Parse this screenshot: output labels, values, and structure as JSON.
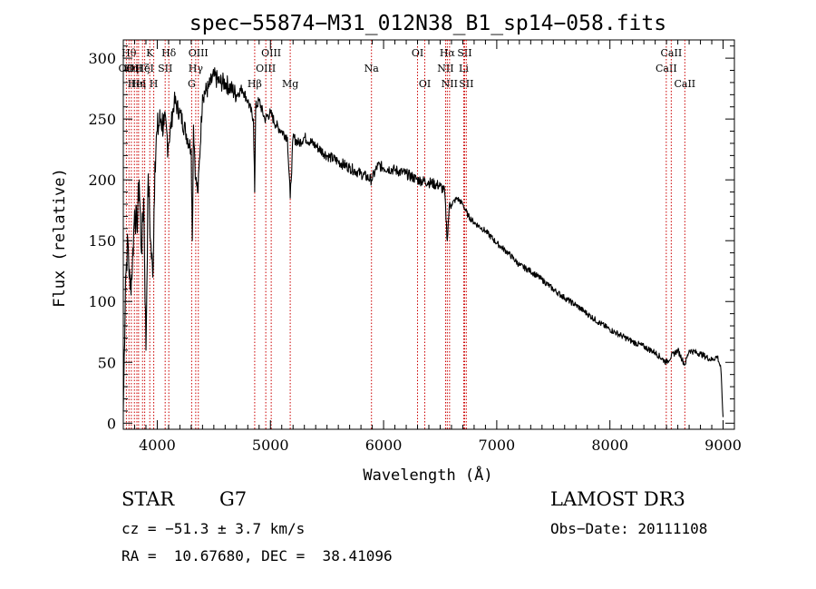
{
  "chart_data": {
    "type": "line",
    "title": "spec−55874−M31_012N38_B1_sp14−058.fits",
    "xlabel": "Wavelength (Å)",
    "ylabel": "Flux (relative)",
    "xlim": [
      3700,
      9100
    ],
    "ylim": [
      -5,
      315
    ],
    "x_ticks": [
      4000,
      5000,
      6000,
      7000,
      8000,
      9000
    ],
    "y_ticks": [
      0,
      50,
      100,
      150,
      200,
      250,
      300
    ],
    "series": [
      {
        "name": "spectrum",
        "x": [
          3700,
          3720,
          3740,
          3760,
          3780,
          3800,
          3820,
          3840,
          3860,
          3880,
          3900,
          3920,
          3940,
          3960,
          3980,
          4000,
          4030,
          4060,
          4100,
          4150,
          4200,
          4250,
          4300,
          4310,
          4320,
          4340,
          4360,
          4400,
          4450,
          4500,
          4550,
          4600,
          4650,
          4700,
          4750,
          4800,
          4850,
          4861,
          4870,
          4900,
          4950,
          5000,
          5050,
          5100,
          5150,
          5175,
          5200,
          5250,
          5300,
          5400,
          5500,
          5600,
          5700,
          5800,
          5893,
          5950,
          6000,
          6100,
          6200,
          6300,
          6400,
          6500,
          6540,
          6563,
          6580,
          6600,
          6650,
          6700,
          6750,
          6800,
          6900,
          7000,
          7100,
          7200,
          7300,
          7400,
          7500,
          7600,
          7700,
          7800,
          7900,
          8000,
          8100,
          8200,
          8300,
          8400,
          8498,
          8542,
          8600,
          8662,
          8700,
          8800,
          8900,
          8950,
          8980,
          9000
        ],
        "values": [
          10,
          120,
          150,
          110,
          130,
          175,
          160,
          200,
          140,
          185,
          60,
          205,
          150,
          120,
          215,
          240,
          250,
          245,
          230,
          265,
          255,
          240,
          225,
          150,
          245,
          200,
          190,
          270,
          275,
          285,
          280,
          280,
          275,
          270,
          275,
          265,
          250,
          190,
          260,
          265,
          250,
          255,
          245,
          240,
          235,
          185,
          235,
          230,
          235,
          228,
          220,
          215,
          210,
          205,
          200,
          212,
          210,
          208,
          205,
          200,
          198,
          195,
          190,
          150,
          178,
          180,
          185,
          180,
          170,
          165,
          158,
          148,
          140,
          130,
          125,
          118,
          110,
          103,
          97,
          90,
          83,
          77,
          72,
          67,
          63,
          58,
          50,
          55,
          60,
          48,
          60,
          57,
          52,
          55,
          45,
          5
        ]
      }
    ],
    "line_markers": [
      {
        "x": 3727,
        "label": "OII",
        "row": 2
      },
      {
        "x": 3750,
        "label": "Hθ",
        "row": 1
      },
      {
        "x": 3771,
        "label": "Hη",
        "row": 2
      },
      {
        "x": 3798,
        "label": "OII",
        "row": 2
      },
      {
        "x": 3820,
        "label": "HeI",
        "row": 3
      },
      {
        "x": 3835,
        "label": "Hη",
        "row": 3
      },
      {
        "x": 3870,
        "label": "Hζ",
        "row": 2
      },
      {
        "x": 3889,
        "label": "HeI",
        "row": 2
      },
      {
        "x": 3934,
        "label": "K",
        "row": 1
      },
      {
        "x": 3969,
        "label": "H",
        "row": 3
      },
      {
        "x": 4070,
        "label": "SII",
        "row": 2
      },
      {
        "x": 4102,
        "label": "Hδ",
        "row": 1
      },
      {
        "x": 4304,
        "label": "G",
        "row": 3
      },
      {
        "x": 4340,
        "label": "Hγ",
        "row": 2
      },
      {
        "x": 4363,
        "label": "OIII",
        "row": 1
      },
      {
        "x": 4861,
        "label": "Hβ",
        "row": 3
      },
      {
        "x": 4959,
        "label": "OIII",
        "row": 2
      },
      {
        "x": 5007,
        "label": "OIII",
        "row": 1
      },
      {
        "x": 5175,
        "label": "Mg",
        "row": 3
      },
      {
        "x": 5893,
        "label": "Na",
        "row": 2
      },
      {
        "x": 6300,
        "label": "OI",
        "row": 1
      },
      {
        "x": 6364,
        "label": "OI",
        "row": 3
      },
      {
        "x": 6548,
        "label": "NII",
        "row": 2
      },
      {
        "x": 6563,
        "label": "Hα",
        "row": 1
      },
      {
        "x": 6583,
        "label": "NII",
        "row": 3
      },
      {
        "x": 6708,
        "label": "Li",
        "row": 2
      },
      {
        "x": 6716,
        "label": "SII",
        "row": 1
      },
      {
        "x": 6731,
        "label": "SII",
        "row": 3
      },
      {
        "x": 8498,
        "label": "CaII",
        "row": 2
      },
      {
        "x": 8542,
        "label": "CaII",
        "row": 1
      },
      {
        "x": 8662,
        "label": "CaII",
        "row": 3
      }
    ]
  },
  "info": {
    "object_class": "STAR",
    "subclass": "G7",
    "survey": "LAMOST DR3",
    "redshift_text": "cz = −51.3 ± 3.7 km/s",
    "obs_date_text": "Obs−Date: 20111108",
    "coords_text": "RA =  10.67680, DEC =  38.41096"
  }
}
